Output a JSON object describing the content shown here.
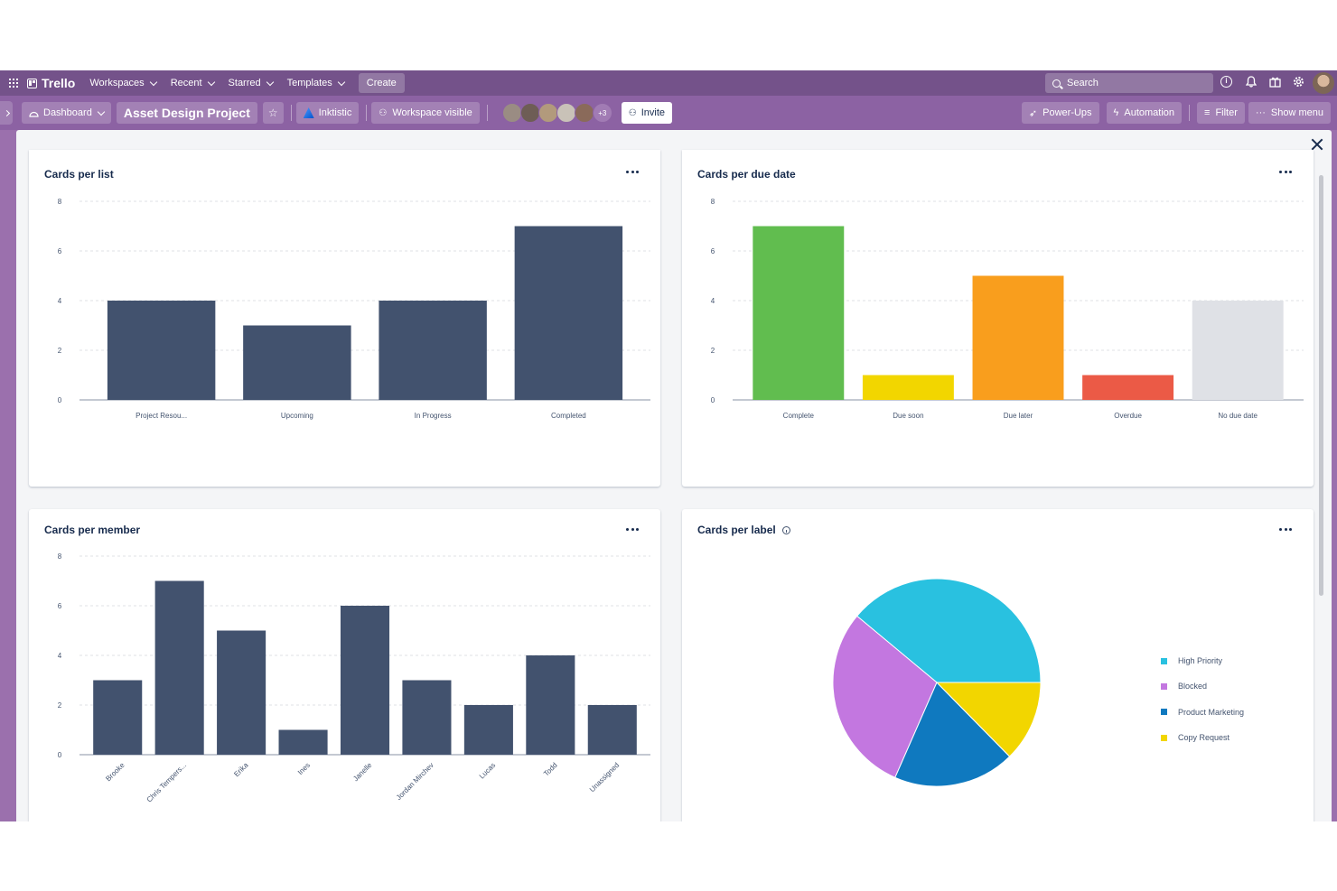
{
  "topnav": {
    "logo": "Trello",
    "menus": [
      "Workspaces",
      "Recent",
      "Starred",
      "Templates"
    ],
    "create_label": "Create",
    "search_label": "Search"
  },
  "board": {
    "dashboard_label": "Dashboard",
    "name": "Asset Design Project",
    "workspace_name": "Inktistic",
    "visibility_label": "Workspace visible",
    "extra_members": "+3",
    "invite_label": "Invite",
    "powerups_label": "Power-Ups",
    "automation_label": "Automation",
    "filter_label": "Filter",
    "show_menu_label": "Show menu"
  },
  "cards": {
    "list_title": "Cards per list",
    "due_title": "Cards per due date",
    "member_title": "Cards per member",
    "label_title": "Cards per label"
  },
  "colors": {
    "bar_default": "#42526e",
    "complete": "#61bd4f",
    "due_soon": "#f2d600",
    "due_later": "#f99e1d",
    "overdue": "#eb5a46",
    "no_due": "#dfe1e6",
    "high_priority": "#29c1e0",
    "blocked": "#c377e0",
    "product_marketing": "#0f79bf",
    "copy_request": "#f2d600"
  },
  "chart_data": [
    {
      "type": "bar",
      "title": "Cards per list",
      "categories": [
        "Project Resou...",
        "Upcoming",
        "In Progress",
        "Completed"
      ],
      "values": [
        4,
        3,
        4,
        7
      ],
      "ylim": [
        0,
        8
      ],
      "yticks": [
        "0",
        "2",
        "4",
        "6",
        "8"
      ],
      "grid": true
    },
    {
      "type": "bar",
      "title": "Cards per due date",
      "categories": [
        "Complete",
        "Due soon",
        "Due later",
        "Overdue",
        "No due date"
      ],
      "values": [
        7,
        1,
        5,
        1,
        4
      ],
      "colors": [
        "#61bd4f",
        "#f2d600",
        "#f99e1d",
        "#eb5a46",
        "#dfe1e6"
      ],
      "ylim": [
        0,
        8
      ],
      "yticks": [
        "0",
        "2",
        "4",
        "6",
        "8"
      ],
      "grid": true
    },
    {
      "type": "bar",
      "title": "Cards per member",
      "categories": [
        "Brooke",
        "Chris Tempers...",
        "Erika",
        "Ines",
        "Janelle",
        "Jordan Mirchev",
        "Lucas",
        "Todd",
        "Unassigned"
      ],
      "values": [
        3,
        7,
        5,
        1,
        6,
        3,
        2,
        4,
        2
      ],
      "ylim": [
        0,
        8
      ],
      "yticks": [
        "0",
        "2",
        "4",
        "6",
        "8"
      ],
      "grid": true
    },
    {
      "type": "pie",
      "title": "Cards per label",
      "labels": [
        "High Priority",
        "Blocked",
        "Product Marketing",
        "Copy Request"
      ],
      "values": [
        37,
        28,
        18,
        12
      ],
      "colors": [
        "#29c1e0",
        "#c377e0",
        "#0f79bf",
        "#f2d600"
      ],
      "legend": "right"
    }
  ]
}
